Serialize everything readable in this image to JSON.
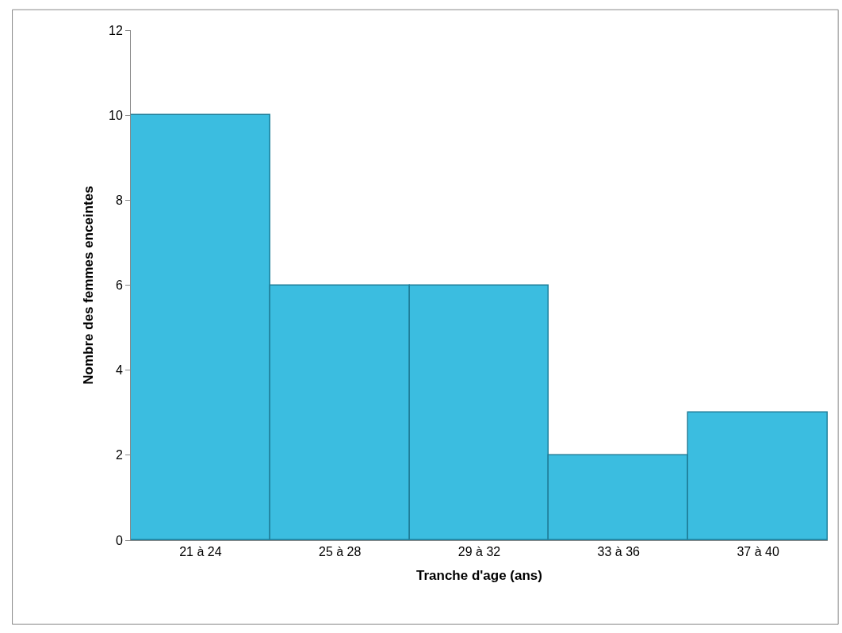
{
  "chart_data": {
    "type": "bar",
    "xlabel": "Tranche d'age (ans)",
    "ylabel": "Nombre des femmes enceintes",
    "categories": [
      "21 à 24",
      "25 à 28",
      "29 à 32",
      "33 à 36",
      "37 à 40"
    ],
    "values": [
      10,
      6,
      6,
      2,
      3
    ],
    "color": "#3bbde0",
    "ylim": [
      0,
      12
    ],
    "yticks": [
      0,
      2,
      4,
      6,
      8,
      10,
      12
    ]
  }
}
